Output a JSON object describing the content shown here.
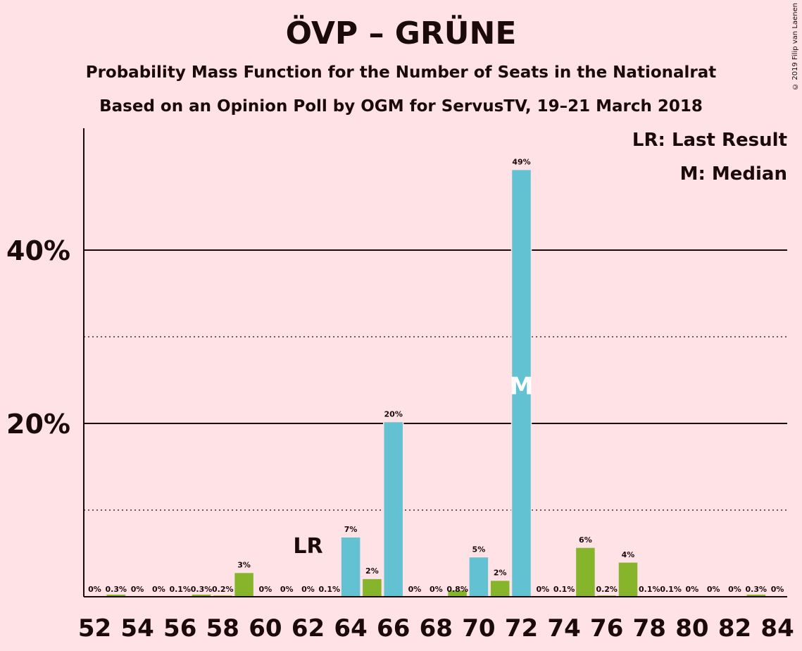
{
  "chart_data": {
    "type": "bar",
    "title": "ÖVP – GRÜNE",
    "subtitle_1": "Probability Mass Function for the Number of Seats in the Nationalrat",
    "subtitle_2": "Based on an Opinion Poll by OGM for ServusTV, 19–21 March 2018",
    "copyright": "© 2019 Filip van Laenen",
    "legend": {
      "last_result": "LR: Last Result",
      "median": "M: Median"
    },
    "markers": {
      "last_result_label": "LR",
      "last_result_seat": 62,
      "median_label": "M",
      "median_seat": 72,
      "median_y": 24.5
    },
    "ylim": [
      0,
      55
    ],
    "major_gridlines": [
      20,
      40
    ],
    "minor_gridlines": [
      10,
      30
    ],
    "y_tick_labels": [
      {
        "value": 20,
        "label": "20%"
      },
      {
        "value": 40,
        "label": "40%"
      }
    ],
    "x_tick_labels": [
      52,
      54,
      56,
      58,
      60,
      62,
      64,
      66,
      68,
      70,
      72,
      74,
      76,
      78,
      80,
      82,
      84
    ],
    "colors": {
      "background": "#FFE2E6",
      "above_median": "#62C2D2",
      "below_median": "#86B42B",
      "text": "#1a0a0a"
    },
    "bars": [
      {
        "seat": 52,
        "value": 0.0,
        "label": "0%",
        "color": "green"
      },
      {
        "seat": 53,
        "value": 0.3,
        "label": "0.3%",
        "color": "green"
      },
      {
        "seat": 54,
        "value": 0.0,
        "label": "0%",
        "color": "green"
      },
      {
        "seat": 55,
        "value": 0.0,
        "label": "0%",
        "color": "green"
      },
      {
        "seat": 56,
        "value": 0.1,
        "label": "0.1%",
        "color": "green"
      },
      {
        "seat": 57,
        "value": 0.3,
        "label": "0.3%",
        "color": "green"
      },
      {
        "seat": 58,
        "value": 0.2,
        "label": "0.2%",
        "color": "green"
      },
      {
        "seat": 59,
        "value": 2.8,
        "label": "3%",
        "color": "green"
      },
      {
        "seat": 60,
        "value": 0.0,
        "label": "0%",
        "color": "green"
      },
      {
        "seat": 61,
        "value": 0.0,
        "label": "0%",
        "color": "green"
      },
      {
        "seat": 62,
        "value": 0.0,
        "label": "0%",
        "color": "green"
      },
      {
        "seat": 63,
        "value": 0.1,
        "label": "0.1%",
        "color": "green"
      },
      {
        "seat": 64,
        "value": 6.9,
        "label": "7%",
        "color": "blue"
      },
      {
        "seat": 65,
        "value": 2.1,
        "label": "2%",
        "color": "green"
      },
      {
        "seat": 66,
        "value": 20.2,
        "label": "20%",
        "color": "blue"
      },
      {
        "seat": 67,
        "value": 0.0,
        "label": "0%",
        "color": "green"
      },
      {
        "seat": 68,
        "value": 0.0,
        "label": "0%",
        "color": "green"
      },
      {
        "seat": 69,
        "value": 0.8,
        "label": "0.8%",
        "color": "green"
      },
      {
        "seat": 70,
        "value": 4.6,
        "label": "5%",
        "color": "blue"
      },
      {
        "seat": 71,
        "value": 1.9,
        "label": "2%",
        "color": "green"
      },
      {
        "seat": 72,
        "value": 49.3,
        "label": "49%",
        "color": "blue"
      },
      {
        "seat": 73,
        "value": 0.0,
        "label": "0%",
        "color": "green"
      },
      {
        "seat": 74,
        "value": 0.1,
        "label": "0.1%",
        "color": "green"
      },
      {
        "seat": 75,
        "value": 5.7,
        "label": "6%",
        "color": "green"
      },
      {
        "seat": 76,
        "value": 0.2,
        "label": "0.2%",
        "color": "green"
      },
      {
        "seat": 77,
        "value": 4.0,
        "label": "4%",
        "color": "green"
      },
      {
        "seat": 78,
        "value": 0.1,
        "label": "0.1%",
        "color": "green"
      },
      {
        "seat": 79,
        "value": 0.1,
        "label": "0.1%",
        "color": "green"
      },
      {
        "seat": 80,
        "value": 0.0,
        "label": "0%",
        "color": "green"
      },
      {
        "seat": 81,
        "value": 0.0,
        "label": "0%",
        "color": "green"
      },
      {
        "seat": 82,
        "value": 0.0,
        "label": "0%",
        "color": "green"
      },
      {
        "seat": 83,
        "value": 0.3,
        "label": "0.3%",
        "color": "green"
      },
      {
        "seat": 84,
        "value": 0.0,
        "label": "0%",
        "color": "green"
      }
    ]
  }
}
